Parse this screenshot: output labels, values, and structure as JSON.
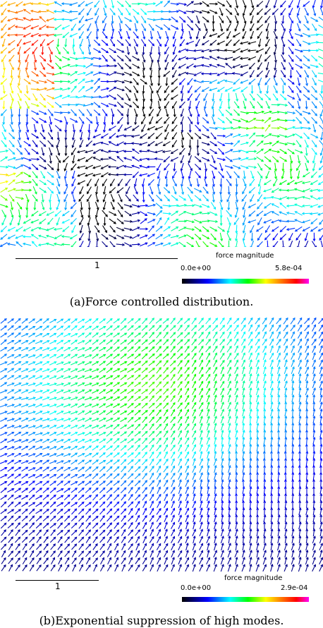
{
  "panels": [
    {
      "scale_bar_label": "1",
      "colorbar": {
        "title": "force magnitude",
        "min": "0.0e+00",
        "max": "5.8e-04"
      },
      "caption": "(a)Force controlled distribution."
    },
    {
      "scale_bar_label": "1",
      "colorbar": {
        "title": "force magnitude",
        "min": "0.0e+00",
        "max": "2.9e-04"
      },
      "caption": "(b)Exponential suppression of high modes."
    }
  ]
}
